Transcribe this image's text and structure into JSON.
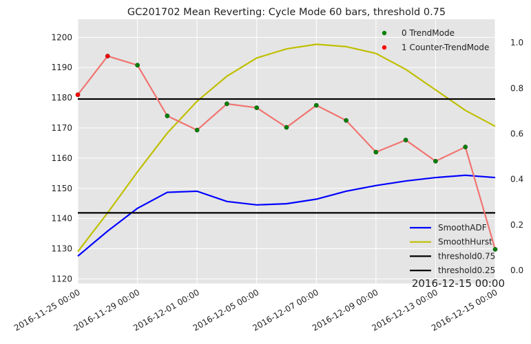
{
  "chart_data": {
    "type": "line",
    "title": "GC201702 Mean Reverting: Cycle Mode 60 bars, threshold 0.75",
    "x_tick_labels": [
      "2016-11-25 00:00",
      "2016-11-29 00:00",
      "2016-12-01 00:00",
      "2016-12-05 00:00",
      "2016-12-07 00:00",
      "2016-12-09 00:00",
      "2016-12-13 00:00",
      "2016-12-15 00:00"
    ],
    "x_tick_index": [
      0,
      2,
      4,
      6,
      8,
      10,
      12,
      14
    ],
    "x_range": [
      0,
      14
    ],
    "hover_label": "2016-12-15 00:00",
    "y_left": {
      "range": [
        1118.5,
        1206
      ],
      "ticks": [
        1120,
        1130,
        1140,
        1150,
        1160,
        1170,
        1180,
        1190,
        1200
      ]
    },
    "y_right": {
      "range": [
        -0.06,
        1.1
      ],
      "ticks": [
        "0.0",
        "0.2",
        "0.4",
        "0.6",
        "0.8",
        "1.0"
      ],
      "tick_values": [
        0.0,
        0.2,
        0.4,
        0.6,
        0.8,
        1.0
      ]
    },
    "grid": true,
    "price": {
      "color": "#f07470",
      "values": [
        1181,
        1193.8,
        1190.8,
        1174,
        1169.3,
        1178,
        1176.7,
        1170.2,
        1177.5,
        1172.5,
        1162,
        1166,
        1159,
        1163.7,
        1129.8
      ]
    },
    "mode": [
      1,
      1,
      0,
      0,
      0,
      0,
      0,
      0,
      0,
      0,
      0,
      0,
      0,
      0,
      0
    ],
    "mode_legend": [
      {
        "label": "0 TrendMode",
        "color": "#008000"
      },
      {
        "label": "1 Counter-TrendMode",
        "color": "#ff0000"
      }
    ],
    "series": [
      {
        "name": "SmoothADF",
        "color": "#0000ff",
        "values": [
          0.06,
          0.17,
          0.27,
          0.34,
          0.345,
          0.3,
          0.285,
          0.29,
          0.31,
          0.345,
          0.37,
          0.39,
          0.405,
          0.415,
          0.405
        ]
      },
      {
        "name": "SmoothHurst",
        "color": "#bfbf00",
        "values": [
          0.08,
          0.25,
          0.43,
          0.6,
          0.74,
          0.85,
          0.93,
          0.97,
          0.99,
          0.98,
          0.95,
          0.88,
          0.79,
          0.7,
          0.63
        ]
      },
      {
        "name": "threshold0.75",
        "color": "#000000",
        "values": [
          0.75,
          0.75,
          0.75,
          0.75,
          0.75,
          0.75,
          0.75,
          0.75,
          0.75,
          0.75,
          0.75,
          0.75,
          0.75,
          0.75,
          0.75
        ]
      },
      {
        "name": "threshold0.25",
        "color": "#000000",
        "values": [
          0.25,
          0.25,
          0.25,
          0.25,
          0.25,
          0.25,
          0.25,
          0.25,
          0.25,
          0.25,
          0.25,
          0.25,
          0.25,
          0.25,
          0.25
        ]
      }
    ],
    "legend_lines": [
      "SmoothADF",
      "SmoothHurst",
      "threshold0.75",
      "threshold0.25"
    ]
  }
}
